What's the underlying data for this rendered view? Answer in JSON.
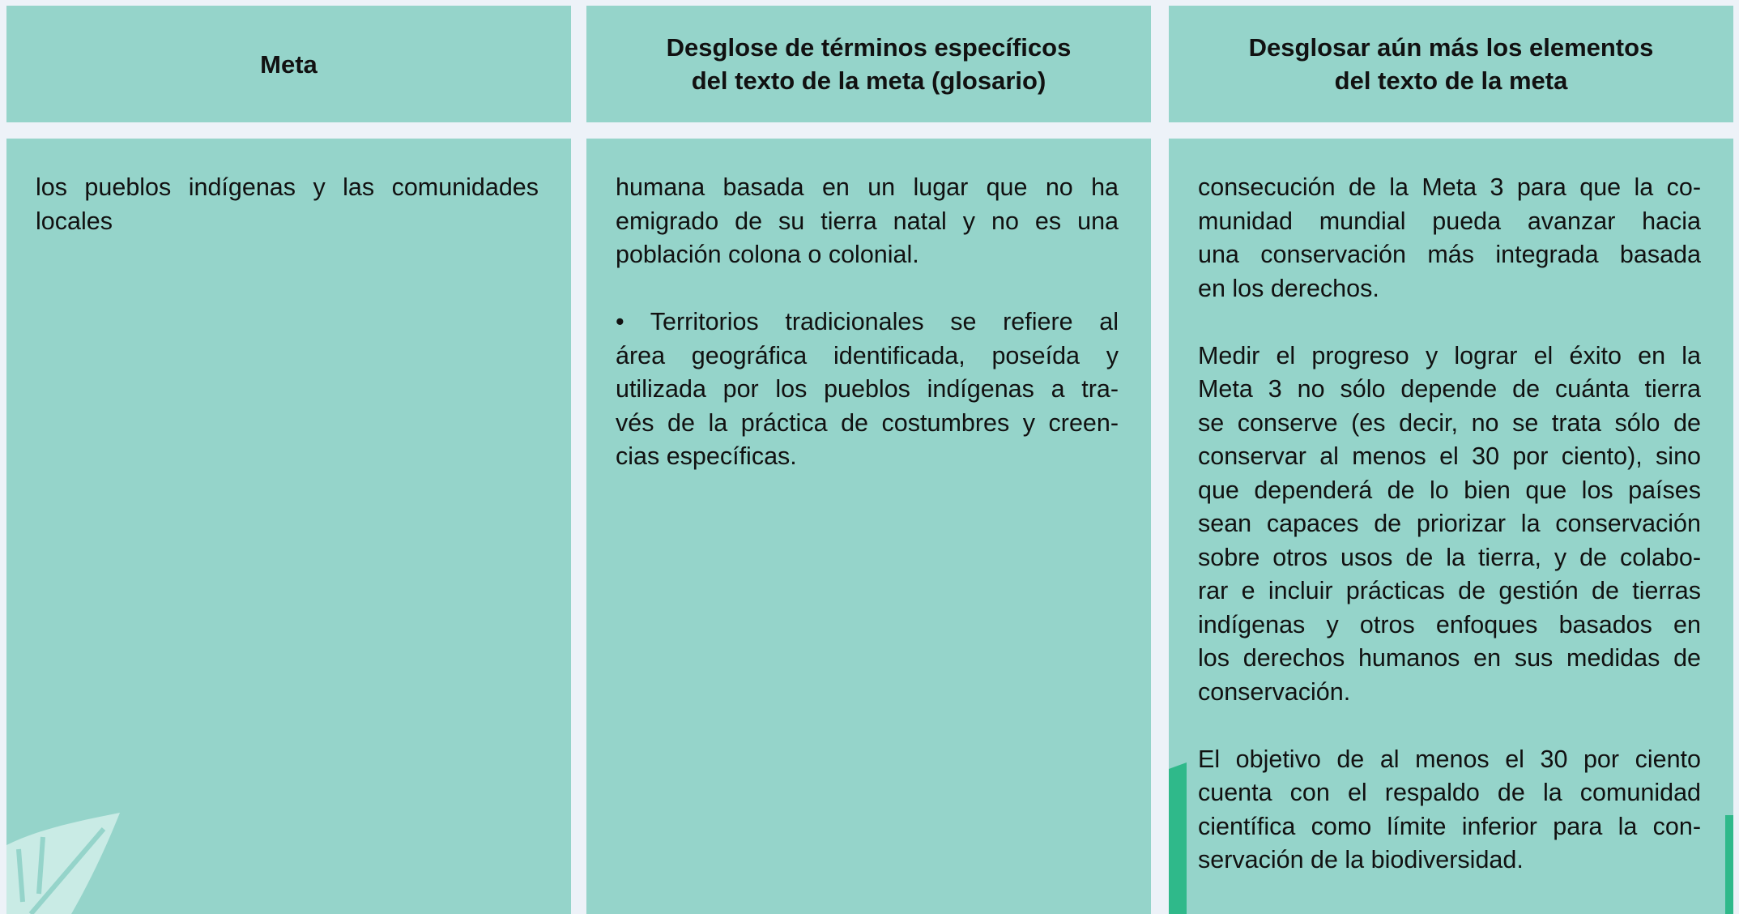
{
  "header": {
    "columns": [
      {
        "lines": [
          "Meta"
        ]
      },
      {
        "lines": [
          "Desglose de términos específicos",
          "del texto de la meta (glosario)"
        ]
      },
      {
        "lines": [
          "Desglosar aún más los elementos",
          "del texto de la meta"
        ]
      }
    ]
  },
  "body": {
    "columns": [
      {
        "paragraphs": [
          [
            "los pueblos indígenas y las comunidades",
            "locales"
          ]
        ]
      },
      {
        "paragraphs": [
          [
            "humana basada en un lugar que no ha",
            "emigrado de su tierra natal y no es una",
            "población colona o colonial."
          ],
          [
            "• Territorios tradicionales se refiere al",
            "área geográfica identificada, poseída y",
            "utilizada por los pueblos indígenas a tra-",
            "vés de la práctica de costumbres y creen-",
            "cias específicas."
          ]
        ]
      },
      {
        "paragraphs": [
          [
            "consecución de la Meta 3 para que la co-",
            "munidad mundial pueda avanzar hacia",
            "una conservación más integrada basada",
            "en los derechos."
          ],
          [
            "Medir el progreso y lograr el éxito en la",
            "Meta 3 no sólo depende de cuánta tierra",
            "se conserve (es decir, no se trata sólo de",
            "conservar al menos el 30 por ciento), sino",
            "que dependerá de lo bien que los países",
            "sean capaces de priorizar la conservación",
            "sobre otros usos de la tierra, y de colabo-",
            "rar e incluir prácticas de gestión de tierras",
            "indígenas y otros enfoques basados en",
            "los derechos humanos en sus medidas de",
            "conservación."
          ],
          [
            "El objetivo de al menos el 30 por ciento",
            "cuenta con el respaldo de la comunidad",
            "científica como límite inferior para la con-",
            "servación de la biodiversidad."
          ]
        ]
      }
    ]
  }
}
